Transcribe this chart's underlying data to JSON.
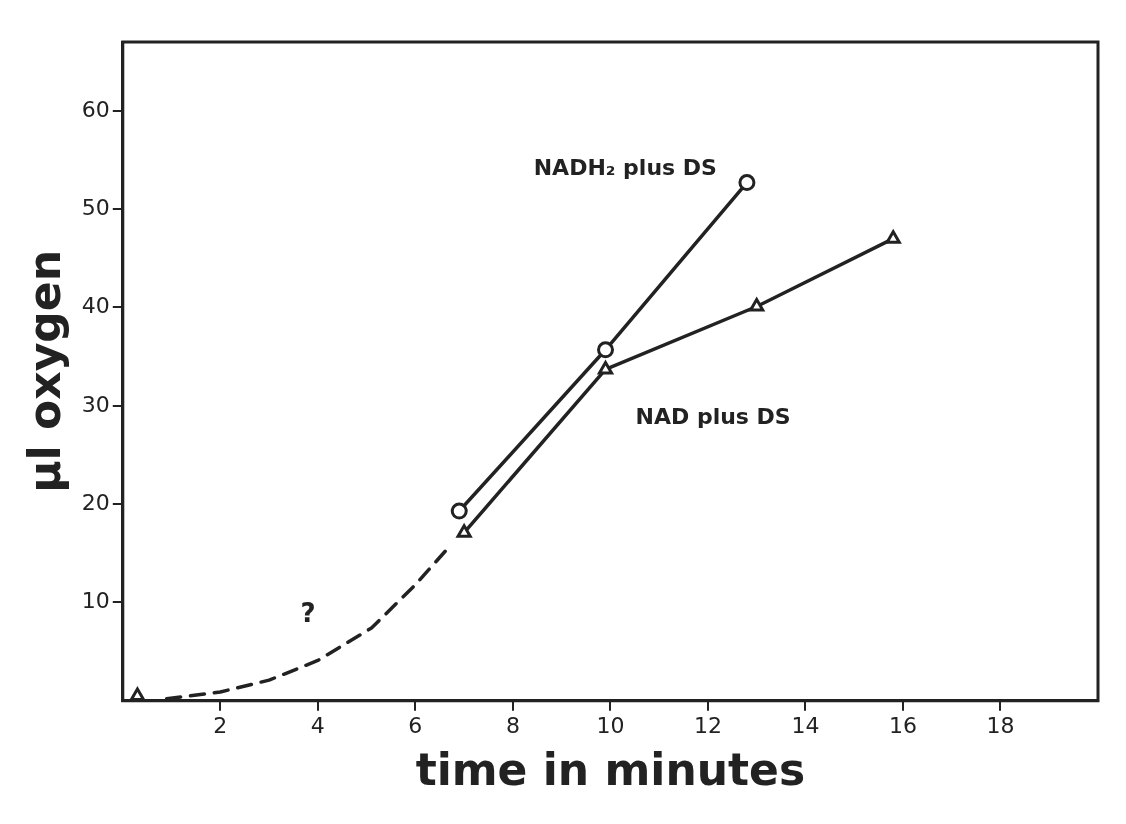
{
  "chart_data": {
    "type": "line",
    "xlabel": "time in minutes",
    "ylabel": "µl oxygen",
    "xlim": [
      0,
      20
    ],
    "ylim": [
      0,
      67
    ],
    "xticks": [
      2,
      4,
      6,
      8,
      10,
      12,
      14,
      16,
      18
    ],
    "yticks": [
      10,
      20,
      30,
      40,
      50,
      60
    ],
    "grid": false,
    "legend": false,
    "series": [
      {
        "name": "NADH₂ plus DS",
        "color": "#222222",
        "x": [
          6.9,
          9.9,
          12.8
        ],
        "values": [
          19.3,
          35.7,
          52.7
        ],
        "marker": "circle",
        "line_style": "solid"
      },
      {
        "name": "NAD plus DS",
        "color": "#222222",
        "x": [
          7.0,
          9.9,
          13.0,
          15.8
        ],
        "values": [
          17.1,
          33.7,
          40.1,
          47.0
        ],
        "marker": "triangle",
        "line_style": "solid"
      },
      {
        "color": "#222222",
        "x": [
          0.3
        ],
        "values": [
          0.5
        ],
        "marker": "triangle"
      },
      {
        "color": "#222222",
        "x": [
          0.9,
          2.0,
          3.0,
          4.0,
          5.1,
          6.0,
          6.7
        ],
        "values": [
          0.2,
          0.9,
          2.1,
          4.1,
          7.4,
          11.8,
          15.7
        ],
        "marker": "none",
        "line_style": "dashed"
      }
    ],
    "annotations": [
      "?"
    ]
  }
}
